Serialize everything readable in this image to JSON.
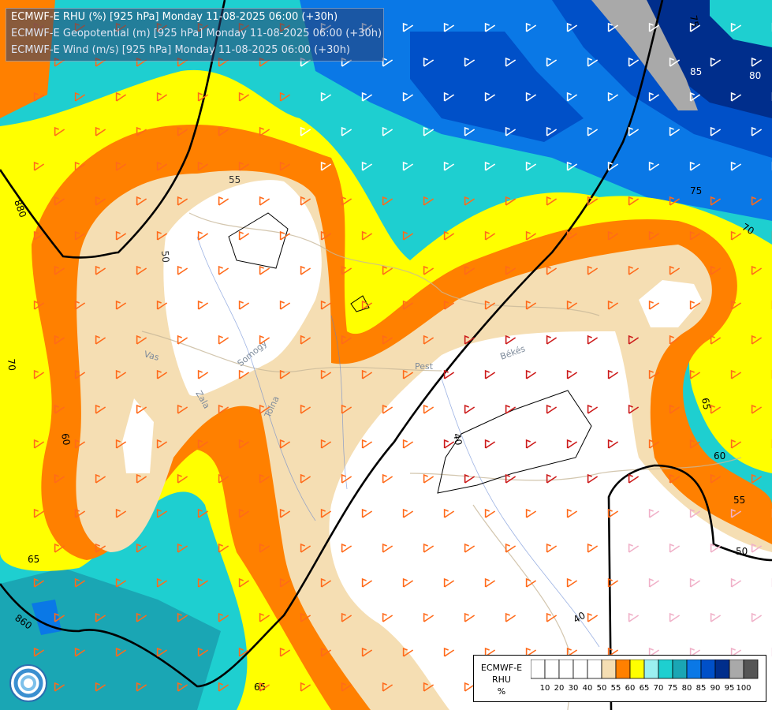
{
  "header": {
    "line1": "ECMWF-E RHU (%) [925 hPa] Monday 11-08-2025 06:00 (+30h)",
    "line2": "ECMWF-E Geopotential (m) [925 hPa] Monday 11-08-2025 06:00 (+30h)",
    "line3": "ECMWF-E Wind (m/s) [925 hPa] Monday 11-08-2025 06:00 (+30h)"
  },
  "legend": {
    "title1": "ECMWF-E",
    "title2": "RHU",
    "unit": "%",
    "ticks": [
      "10",
      "20",
      "30",
      "40",
      "50",
      "55",
      "60",
      "65",
      "70",
      "75",
      "80",
      "85",
      "90",
      "95",
      "100"
    ],
    "colors": [
      "#ffffff",
      "#ffffff",
      "#ffffff",
      "#ffffff",
      "#ffffff",
      "#f5deb3",
      "#ff8000",
      "#ffff00",
      "#9bf0f0",
      "#1ecfd0",
      "#1aa6b4",
      "#0a78e6",
      "#0050c8",
      "#002e8c",
      "#a9a9a9",
      "#555555"
    ]
  },
  "map_labels": {
    "contours": [
      "880",
      "860",
      "50",
      "55",
      "60",
      "65",
      "70",
      "75",
      "80",
      "85",
      "40",
      "55",
      "60",
      "65",
      "50",
      "40",
      "75",
      "70",
      "65"
    ],
    "places": [
      "Vas",
      "Zala",
      "Somogy",
      "Tolna",
      "Pest",
      "Békés"
    ]
  }
}
